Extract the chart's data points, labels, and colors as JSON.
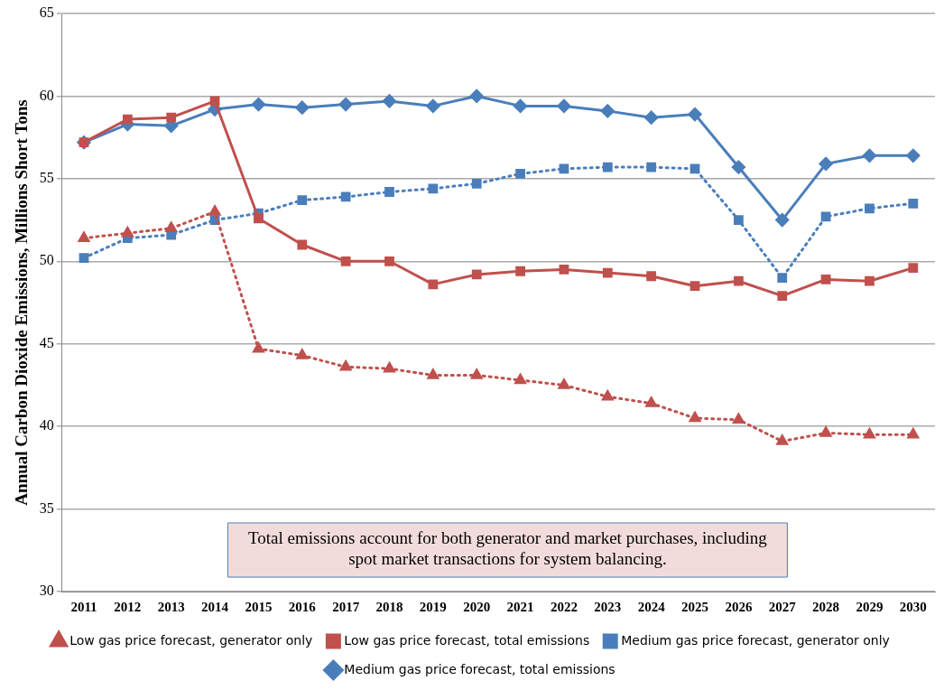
{
  "chart_data": {
    "type": "line",
    "ylabel": "Annual Carbon Dioxide Emissions, Millions Short Tons",
    "categories": [
      "2011",
      "2012",
      "2013",
      "2014",
      "2015",
      "2016",
      "2017",
      "2018",
      "2019",
      "2020",
      "2021",
      "2022",
      "2023",
      "2024",
      "2025",
      "2026",
      "2027",
      "2028",
      "2029",
      "2030"
    ],
    "series": [
      {
        "name": "Medium gas price forecast, total emissions",
        "color": "#4a7ebb",
        "marker": "diamond",
        "line_style": "solid",
        "values": [
          57.2,
          58.3,
          58.2,
          59.2,
          59.5,
          59.3,
          59.5,
          59.7,
          59.4,
          60.0,
          59.4,
          59.4,
          59.1,
          58.7,
          58.9,
          55.7,
          52.5,
          55.9,
          56.4,
          56.4
        ]
      },
      {
        "name": "Medium gas price forecast, generator only",
        "color": "#4a7ebb",
        "marker": "square",
        "line_style": "dotted",
        "values": [
          50.2,
          51.4,
          51.6,
          52.5,
          52.9,
          53.7,
          53.9,
          54.2,
          54.4,
          54.7,
          55.3,
          55.6,
          55.7,
          55.7,
          55.6,
          52.5,
          49.0,
          52.7,
          53.2,
          53.5
        ]
      },
      {
        "name": "Low gas price forecast, total emissions",
        "color": "#c0504d",
        "marker": "square",
        "line_style": "solid",
        "values": [
          57.2,
          58.6,
          58.7,
          59.7,
          52.6,
          51.0,
          50.0,
          50.0,
          48.6,
          49.2,
          49.4,
          49.5,
          49.3,
          49.1,
          48.5,
          48.8,
          47.9,
          48.9,
          48.8,
          49.6
        ]
      },
      {
        "name": "Low gas price forecast, generator only",
        "color": "#c0504d",
        "marker": "triangle",
        "line_style": "dotted",
        "values": [
          51.4,
          51.7,
          52.0,
          53.0,
          44.7,
          44.3,
          43.6,
          43.5,
          43.1,
          43.1,
          42.8,
          42.5,
          41.8,
          41.4,
          40.5,
          40.4,
          39.1,
          39.6,
          39.5,
          39.5
        ]
      }
    ],
    "ylim": [
      30,
      65
    ],
    "yticks": [
      30,
      35,
      40,
      45,
      50,
      55,
      60,
      65
    ],
    "grid": "y",
    "legend": "bottom",
    "annotations": [
      "Total emissions account for both generator and market purchases, including spot market transactions for system balancing."
    ]
  }
}
